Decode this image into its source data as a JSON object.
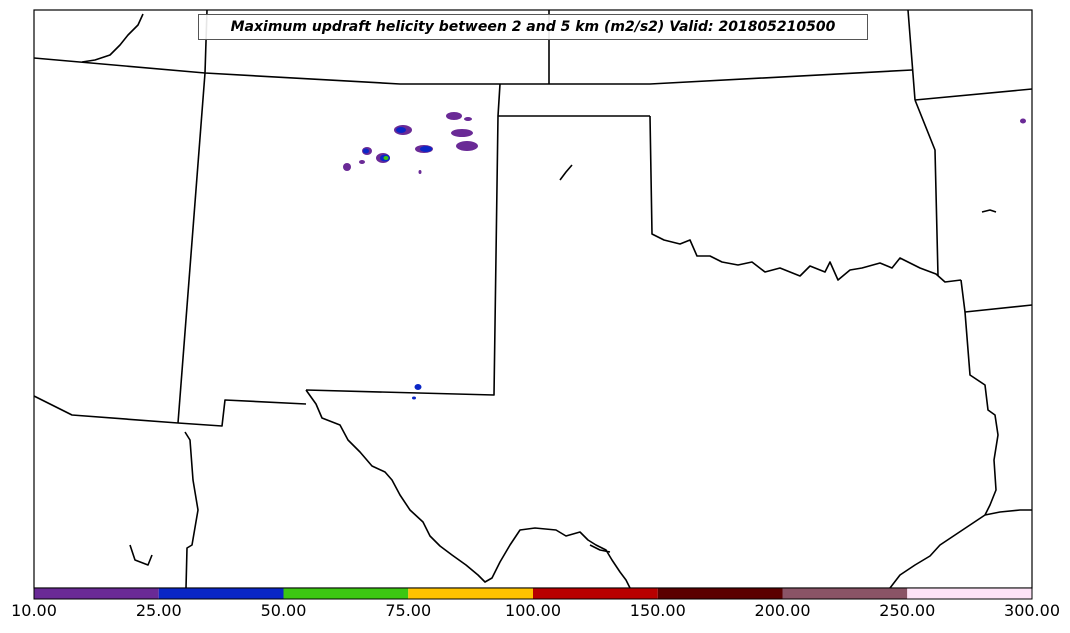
{
  "title": "Maximum updraft helicity between 2 and 5 km (m2/s2) Valid: 201805210500",
  "map": {
    "border_color": "#000000",
    "background": "#ffffff"
  },
  "colorbar": {
    "bins": [
      {
        "from": 10,
        "to": 25,
        "color": "#6a2a96"
      },
      {
        "from": 25,
        "to": 50,
        "color": "#0a26c6"
      },
      {
        "from": 50,
        "to": 75,
        "color": "#3cc712"
      },
      {
        "from": 75,
        "to": 100,
        "color": "#ffc300"
      },
      {
        "from": 100,
        "to": 150,
        "color": "#b80000"
      },
      {
        "from": 150,
        "to": 200,
        "color": "#5b0000"
      },
      {
        "from": 200,
        "to": 250,
        "color": "#8a5466"
      },
      {
        "from": 250,
        "to": 300,
        "color": "#fde2f6"
      }
    ],
    "tick_labels": [
      "10.00",
      "25.00",
      "50.00",
      "75.00",
      "100.00",
      "150.00",
      "200.00",
      "250.00",
      "300.00"
    ]
  },
  "helicity_cells": [
    {
      "level": "10-25",
      "color": "#6a2a96"
    },
    {
      "level": "25-50",
      "color": "#0a26c6"
    },
    {
      "level": "50-75",
      "color": "#3cc712"
    }
  ]
}
